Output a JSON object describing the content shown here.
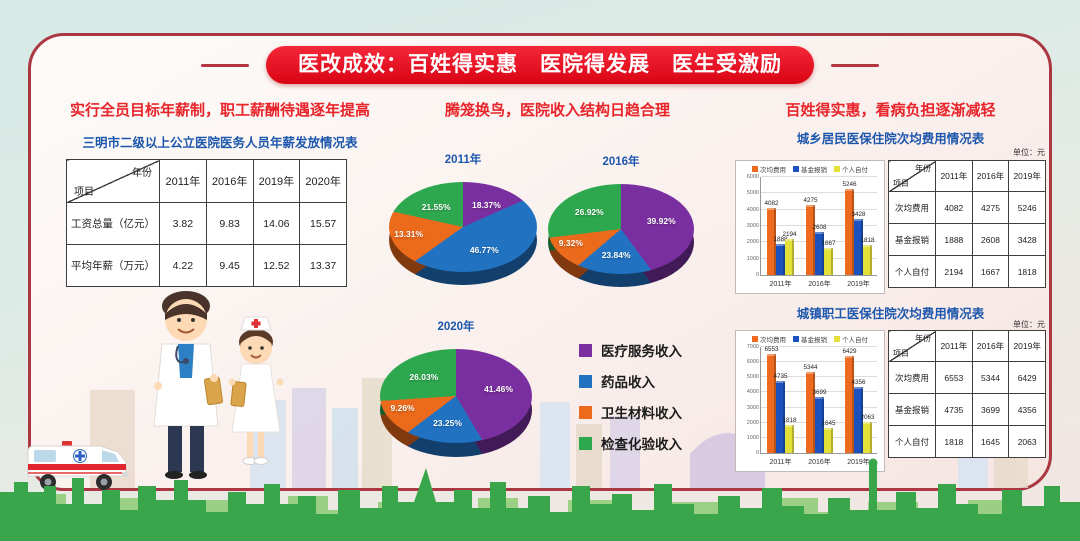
{
  "banner": {
    "title": "医改成效：百姓得实惠　医院得发展　医生受激励"
  },
  "sections": {
    "left": {
      "title": "实行全员目标年薪制，职工薪酬待遇逐年提高",
      "subtitle": "三明市二级以上公立医院医务人员年薪发放情况表",
      "table_corner": {
        "top": "年份",
        "bottom": "项目"
      }
    },
    "middle": {
      "title": "腾笼换鸟，医院收入结构日趋合理",
      "legend": [
        {
          "label": "医疗服务收入",
          "color": "#7a2fa0"
        },
        {
          "label": "药品收入",
          "color": "#2173c2"
        },
        {
          "label": "卫生材料收入",
          "color": "#eb6a1c"
        },
        {
          "label": "检查化验收入",
          "color": "#2ea84e"
        }
      ]
    },
    "right": {
      "title": "百姓得实惠，看病负担逐渐减轻",
      "unit_label": "单位：元",
      "table_corner": {
        "top": "年份",
        "bottom": "项目"
      },
      "legend": [
        {
          "label": "次均费用",
          "color": "#ed6a1e"
        },
        {
          "label": "基金报销",
          "color": "#1b52bd"
        },
        {
          "label": "个人自付",
          "color": "#e3e03a"
        }
      ],
      "panels": [
        {
          "subtitle": "城乡居民医保住院次均费用情况表"
        },
        {
          "subtitle": "城镇职工医保住院次均费用情况表"
        }
      ]
    }
  },
  "chart_data": [
    {
      "type": "table",
      "title": "三明市二级以上公立医院医务人员年薪发放情况表",
      "columns": [
        "项目",
        "2011年",
        "2016年",
        "2019年",
        "2020年"
      ],
      "rows": [
        [
          "工资总量（亿元）",
          "3.82",
          "9.83",
          "14.06",
          "15.57"
        ],
        [
          "平均年薪（万元）",
          "4.22",
          "9.45",
          "12.52",
          "13.37"
        ]
      ]
    },
    {
      "type": "pie",
      "title": "2011年",
      "labels": [
        "医疗服务收入",
        "药品收入",
        "卫生材料收入",
        "检查化验收入"
      ],
      "values": [
        18.37,
        46.77,
        13.31,
        21.55
      ],
      "unit": "%"
    },
    {
      "type": "pie",
      "title": "2016年",
      "labels": [
        "医疗服务收入",
        "药品收入",
        "卫生材料收入",
        "检查化验收入"
      ],
      "values": [
        39.92,
        23.84,
        9.32,
        26.92
      ],
      "unit": "%"
    },
    {
      "type": "pie",
      "title": "2020年",
      "labels": [
        "医疗服务收入",
        "药品收入",
        "卫生材料收入",
        "检查化验收入"
      ],
      "values": [
        41.46,
        23.25,
        9.26,
        26.03
      ],
      "unit": "%"
    },
    {
      "type": "bar",
      "title": "城乡居民医保住院次均费用情况表",
      "categories": [
        "2011年",
        "2016年",
        "2019年"
      ],
      "series": [
        {
          "name": "次均费用",
          "values": [
            4082,
            4275,
            5246
          ]
        },
        {
          "name": "基金报销",
          "values": [
            1888,
            2608,
            3428
          ]
        },
        {
          "name": "个人自付",
          "values": [
            2194,
            1667,
            1818
          ]
        }
      ],
      "ylabel": "元",
      "ylim": [
        0,
        6000
      ],
      "legend_position": "top",
      "grid": true
    },
    {
      "type": "bar",
      "title": "城镇职工医保住院次均费用情况表",
      "categories": [
        "2011年",
        "2016年",
        "2019年"
      ],
      "series": [
        {
          "name": "次均费用",
          "values": [
            6553,
            5344,
            6429
          ]
        },
        {
          "name": "基金报销",
          "values": [
            4735,
            3699,
            4356
          ]
        },
        {
          "name": "个人自付",
          "values": [
            1818,
            1645,
            2063
          ]
        }
      ],
      "ylabel": "元",
      "ylim": [
        0,
        7000
      ],
      "legend_position": "top",
      "grid": true
    }
  ]
}
